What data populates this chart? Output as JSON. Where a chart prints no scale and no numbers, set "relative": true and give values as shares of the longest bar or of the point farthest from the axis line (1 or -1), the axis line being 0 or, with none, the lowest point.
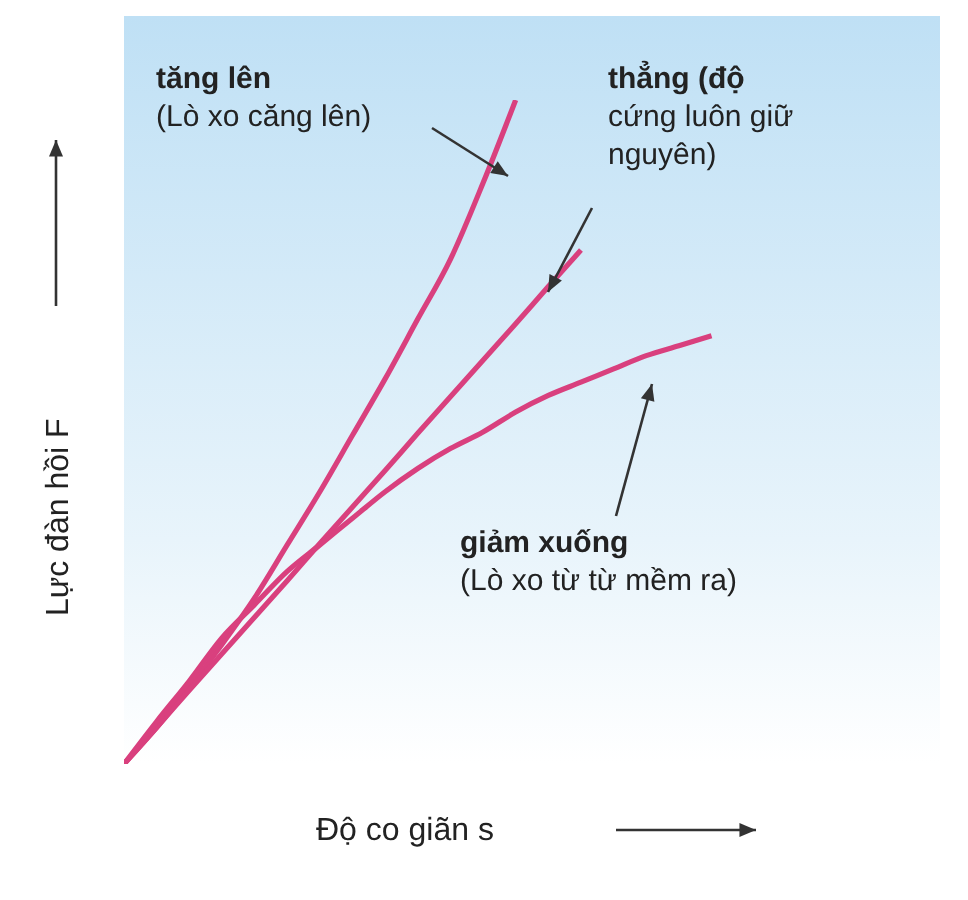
{
  "chart_data": {
    "type": "line",
    "relative": true,
    "xlabel": "Độ co giãn s",
    "ylabel": "Lực đàn hồi F",
    "marker": "none",
    "grid": false,
    "categories": [
      null,
      null,
      null,
      null,
      null,
      null,
      null,
      null,
      null,
      null,
      null,
      null,
      null,
      null,
      null,
      null,
      null,
      null,
      null,
      null,
      null,
      null,
      null,
      null,
      null,
      null
    ],
    "series": [
      {
        "color": "#d9407e",
        "values": [
          0,
          0.055,
          0.115,
          0.18,
          0.25,
          0.33,
          0.41,
          0.495,
          0.58,
          0.67,
          0.76,
          0.875,
          1,
          null,
          null,
          null,
          null,
          null,
          null,
          null,
          null,
          null,
          null,
          null,
          null,
          null
        ]
      },
      {
        "color": "#d9407e",
        "values": [
          0,
          0.055,
          0.111,
          0.166,
          0.221,
          0.276,
          0.332,
          0.387,
          0.442,
          0.498,
          0.553,
          0.608,
          0.663,
          0.719,
          0.774,
          null,
          null,
          null,
          null,
          null,
          null,
          null,
          null,
          null,
          null,
          null
        ]
      },
      {
        "color": "#d9407e",
        "values": [
          0,
          0.064,
          0.125,
          0.19,
          0.24,
          0.29,
          0.33,
          0.37,
          0.41,
          0.445,
          0.475,
          0.5,
          0.53,
          0.555,
          0.575,
          0.595,
          0.615,
          0.63,
          0.645,
          null,
          null,
          null,
          null,
          null,
          null,
          null
        ]
      }
    ],
    "annotations": [
      "tăng lên\n(Lò xo căng lên)",
      "thẳng (độ\ncứng luôn giữ\nnguyên)",
      "giảm xuống\n(Lò xo từ từ mềm ra)"
    ]
  }
}
